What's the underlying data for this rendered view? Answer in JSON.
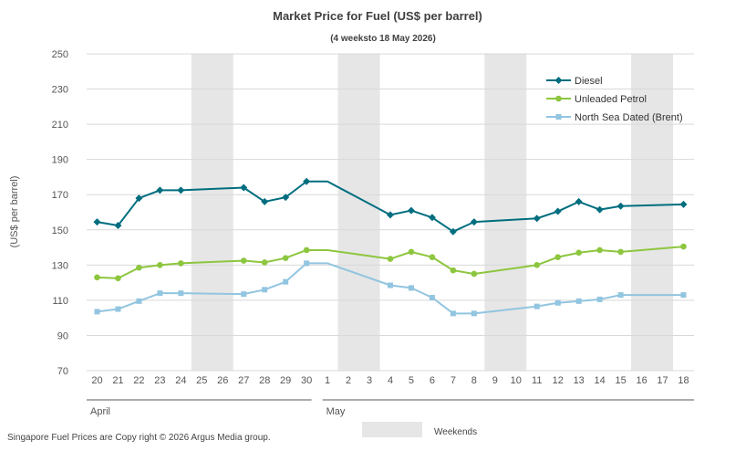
{
  "chart_data": {
    "type": "line",
    "title": "Market Price for Fuel (US$ per barrel)",
    "subtitle": "(4 weeksto 18 May 2026)",
    "ylabel": "(US$ per barrel)",
    "ylim": [
      70,
      250
    ],
    "yticks": [
      70,
      90,
      110,
      130,
      150,
      170,
      190,
      210,
      230,
      250
    ],
    "grid": true,
    "legend_position": "top-right",
    "x_labels": [
      "20",
      "21",
      "22",
      "23",
      "24",
      "25",
      "26",
      "27",
      "28",
      "29",
      "30",
      "1",
      "2",
      "3",
      "4",
      "5",
      "6",
      "7",
      "8",
      "9",
      "10",
      "11",
      "12",
      "13",
      "14",
      "15",
      "16",
      "17",
      "18"
    ],
    "month_labels": [
      {
        "label": "April",
        "from": "20",
        "to": "30"
      },
      {
        "label": "May",
        "from": "1",
        "to": "18"
      }
    ],
    "weekend_bands": [
      {
        "from": "25",
        "to": "26"
      },
      {
        "from": "2",
        "to": "3"
      },
      {
        "from": "9",
        "to": "10"
      },
      {
        "from": "16",
        "to": "17"
      }
    ],
    "series": [
      {
        "name": "Diesel",
        "color": "#006E7F",
        "marker": "diamond",
        "values": [
          154.5,
          152.5,
          168,
          172.5,
          172.5,
          null,
          null,
          174,
          166,
          168.5,
          177.5,
          177.5,
          null,
          null,
          158.5,
          161,
          157,
          149,
          154.5,
          null,
          null,
          156.5,
          160.5,
          166,
          161.5,
          163.5,
          null,
          null,
          164.5
        ],
        "markers": [
          true,
          true,
          true,
          true,
          true,
          false,
          false,
          true,
          true,
          true,
          true,
          false,
          false,
          false,
          true,
          true,
          true,
          true,
          true,
          false,
          false,
          true,
          true,
          true,
          true,
          true,
          false,
          false,
          true
        ]
      },
      {
        "name": "Unleaded Petrol",
        "color": "#8DC63F",
        "marker": "circle",
        "values": [
          123,
          122.5,
          128.5,
          130,
          131,
          null,
          null,
          132.5,
          131.5,
          134,
          138.5,
          138.5,
          null,
          null,
          133.5,
          137.5,
          134.5,
          127,
          125,
          null,
          null,
          130,
          134.5,
          137,
          138.5,
          137.5,
          null,
          null,
          140.5
        ],
        "markers": [
          true,
          true,
          true,
          true,
          true,
          false,
          false,
          true,
          true,
          true,
          true,
          false,
          false,
          false,
          true,
          true,
          true,
          true,
          true,
          false,
          false,
          true,
          true,
          true,
          true,
          true,
          false,
          false,
          true
        ]
      },
      {
        "name": "North Sea Dated (Brent)",
        "color": "#92C5E0",
        "marker": "square",
        "values": [
          103.5,
          105,
          109.5,
          114,
          114,
          null,
          null,
          113.5,
          116,
          120.5,
          131,
          131,
          null,
          null,
          118.5,
          117,
          111.5,
          102.5,
          102.5,
          null,
          null,
          106.5,
          108.5,
          109.5,
          110.5,
          113,
          null,
          null,
          113
        ],
        "markers": [
          true,
          true,
          true,
          true,
          true,
          false,
          false,
          true,
          true,
          true,
          true,
          false,
          false,
          false,
          true,
          true,
          true,
          true,
          true,
          false,
          false,
          true,
          true,
          true,
          true,
          true,
          false,
          false,
          true
        ]
      }
    ]
  },
  "footer": {
    "copyright": "Singapore Fuel Prices are Copy right © 2026 Argus Media group.",
    "weekends_label": "Weekends"
  },
  "colors": {
    "grid": "#D9D9D9",
    "weekend_band": "#E6E6E6",
    "axis": "#595959"
  }
}
